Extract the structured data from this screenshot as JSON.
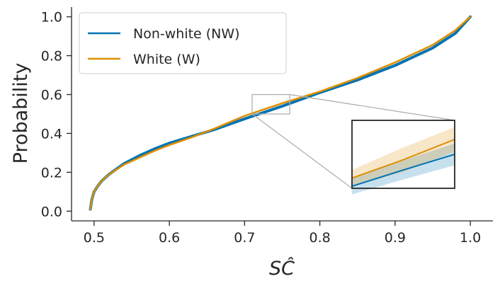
{
  "chart_data": {
    "type": "line",
    "title": "",
    "xlabel": "SĈ",
    "ylabel": "Probability",
    "xlim": [
      0.47,
      1.03
    ],
    "ylim": [
      -0.05,
      1.05
    ],
    "xticks": [
      0.5,
      0.6,
      0.7,
      0.8,
      0.9,
      1.0
    ],
    "xtick_labels": [
      "0.5",
      "0.6",
      "0.7",
      "0.8",
      "0.9",
      "1.0"
    ],
    "yticks": [
      0.0,
      0.2,
      0.4,
      0.6,
      0.8,
      1.0
    ],
    "ytick_labels": [
      "0.0",
      "0.2",
      "0.4",
      "0.6",
      "0.8",
      "1.0"
    ],
    "grid": false,
    "legend_position": "top-left",
    "series": [
      {
        "name": "Non-white (NW)",
        "color": "#0173b2",
        "x": [
          0.495,
          0.497,
          0.5,
          0.505,
          0.51,
          0.52,
          0.54,
          0.56,
          0.58,
          0.6,
          0.63,
          0.66,
          0.7,
          0.75,
          0.8,
          0.85,
          0.9,
          0.95,
          0.98,
          1.0
        ],
        "y": [
          0.01,
          0.06,
          0.1,
          0.13,
          0.155,
          0.19,
          0.245,
          0.285,
          0.32,
          0.35,
          0.385,
          0.42,
          0.475,
          0.54,
          0.61,
          0.675,
          0.75,
          0.84,
          0.915,
          1.0
        ]
      },
      {
        "name": "White (W)",
        "color": "#de8f05",
        "x": [
          0.495,
          0.497,
          0.5,
          0.505,
          0.51,
          0.52,
          0.54,
          0.56,
          0.58,
          0.6,
          0.63,
          0.66,
          0.7,
          0.75,
          0.8,
          0.85,
          0.9,
          0.95,
          0.98,
          1.0
        ],
        "y": [
          0.01,
          0.06,
          0.1,
          0.13,
          0.155,
          0.19,
          0.24,
          0.275,
          0.31,
          0.34,
          0.38,
          0.425,
          0.49,
          0.555,
          0.615,
          0.685,
          0.765,
          0.855,
          0.93,
          1.0
        ]
      }
    ],
    "inset": {
      "xlim": [
        0.71,
        0.76
      ],
      "ylim": [
        0.5,
        0.6
      ],
      "series": [
        {
          "name": "Non-white (NW)",
          "color": "#0173b2",
          "x": [
            0.71,
            0.735,
            0.76
          ],
          "y": [
            0.503,
            0.527,
            0.55
          ],
          "band": [
            0.012,
            0.014,
            0.016
          ]
        },
        {
          "name": "White (W)",
          "color": "#de8f05",
          "x": [
            0.71,
            0.735,
            0.76
          ],
          "y": [
            0.515,
            0.542,
            0.572
          ],
          "band": [
            0.012,
            0.018,
            0.018
          ]
        }
      ]
    }
  }
}
